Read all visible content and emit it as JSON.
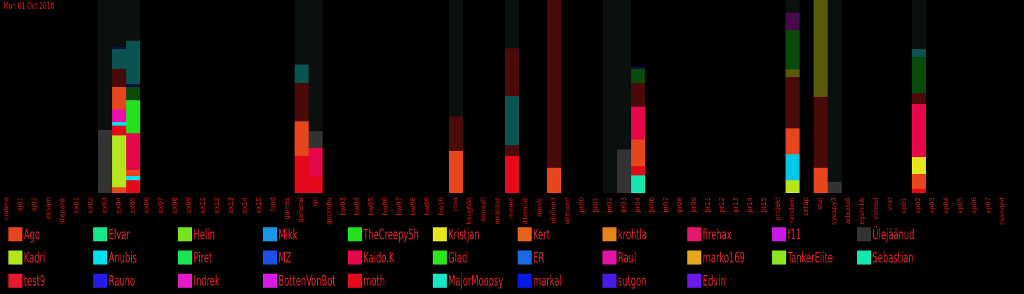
{
  "chart_data": {
    "type": "bar",
    "stacked": true,
    "date_label": "Mon 01 Oct 2018",
    "categories": [
      "codera",
      "dj01",
      "dj02",
      "eksam",
      "eltepank",
      "ex01",
      "ex02",
      "ex03",
      "ex04",
      "ex05",
      "ex06",
      "ex07",
      "ex08",
      "ex09",
      "ex11",
      "ex12",
      "ex13",
      "ex14",
      "ex15",
      "fsnd",
      "games",
      "general",
      "git",
      "goombu",
      "hw03",
      "hw04",
      "hw05",
      "hw06",
      "hw07",
      "hw08",
      "hw09",
      "hw10",
      "java",
      "kaugtöö",
      "konsult",
      "korraldus",
      "meme",
      "mittemiiili",
      "music",
      "oluline3",
      "polmaeri",
      "pr00",
      "pr01",
      "pr02",
      "pr03",
      "pr04",
      "pr06",
      "pr07",
      "pr08",
      "pr09",
      "pr11",
      "pr12",
      "pr13",
      "pr14",
      "pr15",
      "projekt",
      "random",
      "setup",
      "stat",
      "syvapy3",
      "teadaandi",
      "vegan-tik",
      "videod",
      "vrat",
      "xp01",
      "xp02",
      "xp03",
      "xp04",
      "xp05",
      "xp06",
      "xp07",
      "ülesanded"
    ],
    "background_totals": [
      0,
      0,
      0,
      0,
      0,
      0,
      0,
      275,
      275,
      275,
      0,
      0,
      0,
      0,
      0,
      0,
      0,
      0,
      0,
      0,
      0,
      275,
      275,
      0,
      0,
      0,
      0,
      0,
      0,
      0,
      0,
      0,
      275,
      0,
      0,
      0,
      275,
      0,
      0,
      0,
      0,
      0,
      0,
      275,
      275,
      0,
      0,
      0,
      0,
      0,
      0,
      0,
      0,
      0,
      0,
      0,
      275,
      0,
      275,
      275,
      0,
      0,
      0,
      0,
      0,
      275,
      0,
      0,
      0,
      0,
      0,
      0
    ],
    "stacks": {
      "ex03": [
        {
          "color": "#333333",
          "value": 90
        }
      ],
      "ex04": [
        {
          "color": "#e7451b",
          "value": 8
        },
        {
          "color": "#b5e61d",
          "value": 74
        },
        {
          "color": "#e5071a",
          "value": 14
        },
        {
          "color": "#00e1f0",
          "value": 5
        },
        {
          "color": "#e612a8",
          "value": 18
        },
        {
          "color": "#e7451b",
          "value": 32
        },
        {
          "color": "#4a0a0a",
          "value": 26
        },
        {
          "color": "#0a5350",
          "value": 28
        },
        {
          "color": "#140a4a",
          "value": 3
        }
      ],
      "ex05": [
        {
          "color": "#e5071a",
          "value": 18
        },
        {
          "color": "#00e1f0",
          "value": 6
        },
        {
          "color": "#e7451b",
          "value": 9
        },
        {
          "color": "#e5074a",
          "value": 52
        },
        {
          "color": "#22e01a",
          "value": 47
        },
        {
          "color": "#0a4a0a",
          "value": 19
        },
        {
          "color": "#140a4a",
          "value": 4
        },
        {
          "color": "#0a5350",
          "value": 62
        }
      ],
      "general": [
        {
          "color": "#e5071a",
          "value": 53
        },
        {
          "color": "#e7451b",
          "value": 49
        },
        {
          "color": "#4a0a0a",
          "value": 55
        },
        {
          "color": "#0a5350",
          "value": 26
        }
      ],
      "git": [
        {
          "color": "#e5071a",
          "value": 23
        },
        {
          "color": "#e5074a",
          "value": 41
        },
        {
          "color": "#333333",
          "value": 24
        }
      ],
      "java": [
        {
          "color": "#e7451b",
          "value": 60
        },
        {
          "color": "#4a0a0a",
          "value": 49
        }
      ],
      "meme": [
        {
          "color": "#e5071a",
          "value": 53
        },
        {
          "color": "#4a0a0a",
          "value": 15
        },
        {
          "color": "#0a5350",
          "value": 70
        },
        {
          "color": "#4a0a0a",
          "value": 68
        }
      ],
      "oluline3": [
        {
          "color": "#e7451b",
          "value": 36
        },
        {
          "color": "#4a0a0a",
          "value": 239
        }
      ],
      "pr03": [
        {
          "color": "#333333",
          "value": 62
        }
      ],
      "pr04": [
        {
          "color": "#16e6b0",
          "value": 25
        },
        {
          "color": "#e5071a",
          "value": 13
        },
        {
          "color": "#e7451b",
          "value": 38
        },
        {
          "color": "#e5074a",
          "value": 47
        },
        {
          "color": "#4a0a0a",
          "value": 34
        },
        {
          "color": "#0a4a0a",
          "value": 20
        },
        {
          "color": "#140a4a",
          "value": 3
        }
      ],
      "random": [
        {
          "color": "#b5e61d",
          "value": 18
        },
        {
          "color": "#00c8e6",
          "value": 37
        },
        {
          "color": "#e7451b",
          "value": 37
        },
        {
          "color": "#4a0a0a",
          "value": 73
        },
        {
          "color": "#5a5a0a",
          "value": 11
        },
        {
          "color": "#0a4a0a",
          "value": 56
        },
        {
          "color": "#4a0a4a",
          "value": 25
        }
      ],
      "stat": [
        {
          "color": "#e7451b",
          "value": 36
        },
        {
          "color": "#4a0a0a",
          "value": 101
        },
        {
          "color": "#5a5a0a",
          "value": 138
        }
      ],
      "syvapy3": [
        {
          "color": "#333333",
          "value": 16
        }
      ],
      "xp02": [
        {
          "color": "#e5071a",
          "value": 6
        },
        {
          "color": "#e7451b",
          "value": 21
        },
        {
          "color": "#e6e61d",
          "value": 24
        },
        {
          "color": "#e5074a",
          "value": 76
        },
        {
          "color": "#4a0a0a",
          "value": 15
        },
        {
          "color": "#0a4a0a",
          "value": 52
        },
        {
          "color": "#0a5350",
          "value": 11
        }
      ]
    },
    "legend": [
      {
        "name": "Ago",
        "color": "#e7451b"
      },
      {
        "name": "Elvar",
        "color": "#16e68a"
      },
      {
        "name": "Helin",
        "color": "#72e61d"
      },
      {
        "name": "Mikk",
        "color": "#1a96e6"
      },
      {
        "name": "TheCreepySh",
        "color": "#22e01a"
      },
      {
        "name": "Kristjan",
        "color": "#e6e61d"
      },
      {
        "name": "Kert",
        "color": "#e6631a"
      },
      {
        "name": "krohtla",
        "color": "#e6841a"
      },
      {
        "name": "firehax",
        "color": "#e5176a"
      },
      {
        "name": "f11",
        "color": "#c81ae6"
      },
      {
        "name": "Ülejäänud",
        "color": "#333333"
      },
      {
        "name": "Kadri",
        "color": "#b5e61d"
      },
      {
        "name": "Anubis",
        "color": "#00e1f0"
      },
      {
        "name": "Piret",
        "color": "#16e650"
      },
      {
        "name": "MZ",
        "color": "#1a50e6"
      },
      {
        "name": "Kaido.K",
        "color": "#e5074a"
      },
      {
        "name": "Glad",
        "color": "#2ae61d"
      },
      {
        "name": "ER",
        "color": "#1a6ae6"
      },
      {
        "name": "Raul",
        "color": "#e612a8"
      },
      {
        "name": "marko169",
        "color": "#e6a81a"
      },
      {
        "name": "TankerElite",
        "color": "#8ae61d"
      },
      {
        "name": "Sebastian",
        "color": "#16e6b0"
      },
      {
        "name": "test9",
        "color": "#e51a2a"
      },
      {
        "name": "Rauno",
        "color": "#2a1ae6"
      },
      {
        "name": "Indrek",
        "color": "#e61ac8"
      },
      {
        "name": "BottenVonBot",
        "color": "#d81ae6"
      },
      {
        "name": "moth",
        "color": "#e5071a"
      },
      {
        "name": "MajorMoopsy",
        "color": "#16e6c8"
      },
      {
        "name": "markal",
        "color": "#0a1ae6"
      },
      {
        "name": "sutgon",
        "color": "#4a1ae6"
      },
      {
        "name": "Edvin",
        "color": "#6a1ae6"
      }
    ],
    "label_color": "#d81818",
    "background_color": "#000000",
    "column_bg_color": "#0a100e",
    "ylim": [
      0,
      275
    ]
  }
}
